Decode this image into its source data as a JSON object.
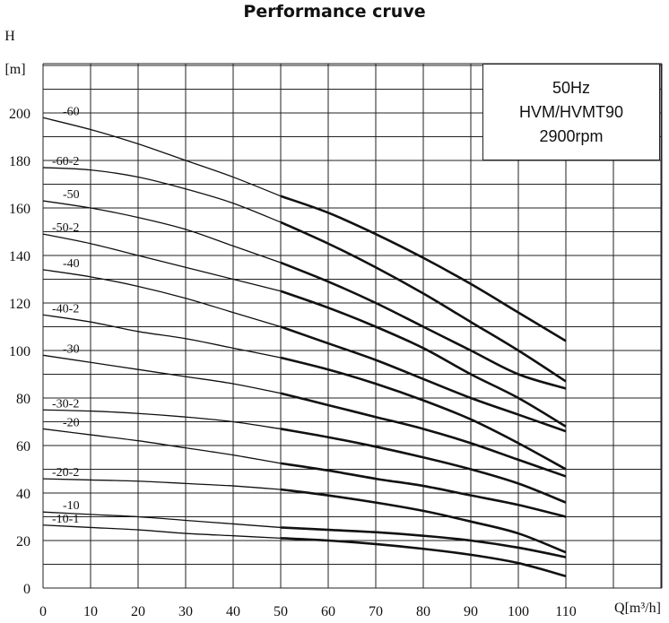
{
  "title": "Performance cruve",
  "info_box": {
    "line1": "50Hz",
    "line2": "HVM/HVMT90",
    "line3": "2900rpm"
  },
  "colors": {
    "grid": "#222222",
    "curve": "#111111"
  },
  "chart_data": {
    "type": "line",
    "title": "Performance cruve",
    "ylabel_top": "H",
    "ylabel_unit": "[m]",
    "xlabel": "Q[m³/h]",
    "xlim": [
      0,
      110
    ],
    "ylim": [
      0,
      200
    ],
    "x_ticks": [
      0,
      10,
      20,
      30,
      40,
      50,
      60,
      70,
      80,
      90,
      100,
      110
    ],
    "y_ticks": [
      0,
      20,
      40,
      60,
      80,
      100,
      120,
      140,
      160,
      180,
      200
    ],
    "grid": true,
    "series": [
      {
        "name": "-60",
        "x": [
          0,
          10,
          20,
          30,
          40,
          50,
          60,
          70,
          80,
          90,
          100,
          110
        ],
        "y": [
          198,
          193,
          187,
          180,
          173,
          165,
          158,
          149,
          139,
          128,
          116,
          104
        ]
      },
      {
        "name": "-60-2",
        "x": [
          0,
          10,
          20,
          30,
          40,
          50,
          60,
          70,
          80,
          90,
          100,
          110
        ],
        "y": [
          177,
          176,
          173,
          168,
          162,
          154,
          145,
          135,
          124,
          112,
          100,
          87
        ]
      },
      {
        "name": "-50",
        "x": [
          0,
          10,
          20,
          30,
          40,
          50,
          60,
          70,
          80,
          90,
          100,
          110
        ],
        "y": [
          163,
          160,
          156,
          151,
          144,
          137,
          129,
          120,
          110,
          100,
          90,
          84
        ]
      },
      {
        "name": "-50-2",
        "x": [
          0,
          10,
          20,
          30,
          40,
          50,
          60,
          70,
          80,
          90,
          100,
          110
        ],
        "y": [
          149,
          145,
          140,
          135,
          130,
          125,
          118,
          110,
          101,
          90,
          80,
          68
        ]
      },
      {
        "name": "-40",
        "x": [
          0,
          10,
          20,
          30,
          40,
          50,
          60,
          70,
          80,
          90,
          100,
          110
        ],
        "y": [
          134,
          131,
          127,
          122,
          116,
          110,
          103,
          96,
          88,
          80,
          73,
          66
        ]
      },
      {
        "name": "-40-2",
        "x": [
          0,
          10,
          20,
          30,
          40,
          50,
          60,
          70,
          80,
          90,
          100,
          110
        ],
        "y": [
          115,
          112,
          108,
          105,
          101,
          97,
          92,
          86,
          79,
          71,
          61,
          50
        ]
      },
      {
        "name": "-30",
        "x": [
          0,
          10,
          20,
          30,
          40,
          50,
          60,
          70,
          80,
          90,
          100,
          110
        ],
        "y": [
          98,
          95,
          92,
          89,
          86,
          82,
          77,
          72,
          67,
          61,
          54,
          47
        ]
      },
      {
        "name": "-30-2",
        "x": [
          0,
          10,
          20,
          30,
          40,
          50,
          60,
          70,
          80,
          90,
          100,
          110
        ],
        "y": [
          75,
          74.5,
          73.5,
          72,
          70,
          67,
          63.5,
          59.5,
          55,
          50,
          44,
          36
        ]
      },
      {
        "name": "-20",
        "x": [
          0,
          10,
          20,
          30,
          40,
          50,
          60,
          70,
          80,
          90,
          100,
          110
        ],
        "y": [
          67,
          64.5,
          62,
          59,
          56,
          52.5,
          49.5,
          46,
          43,
          39,
          35,
          30
        ]
      },
      {
        "name": "-20-2",
        "x": [
          0,
          10,
          20,
          30,
          40,
          50,
          60,
          70,
          80,
          90,
          100,
          110
        ],
        "y": [
          46,
          45.5,
          45,
          44,
          43,
          41.5,
          39,
          36,
          32.5,
          28,
          23,
          15
        ]
      },
      {
        "name": "-10",
        "x": [
          0,
          10,
          20,
          30,
          40,
          50,
          60,
          70,
          80,
          90,
          100,
          110
        ],
        "y": [
          32,
          31,
          30,
          28.5,
          27,
          25.5,
          24.5,
          23.5,
          22,
          20,
          17,
          13
        ]
      },
      {
        "name": "-10-1",
        "x": [
          0,
          10,
          20,
          30,
          40,
          50,
          60,
          70,
          80,
          90,
          100,
          110
        ],
        "y": [
          26.5,
          25.5,
          24.5,
          23,
          22,
          21,
          20,
          18.5,
          16.5,
          14,
          10.5,
          5
        ]
      }
    ]
  }
}
